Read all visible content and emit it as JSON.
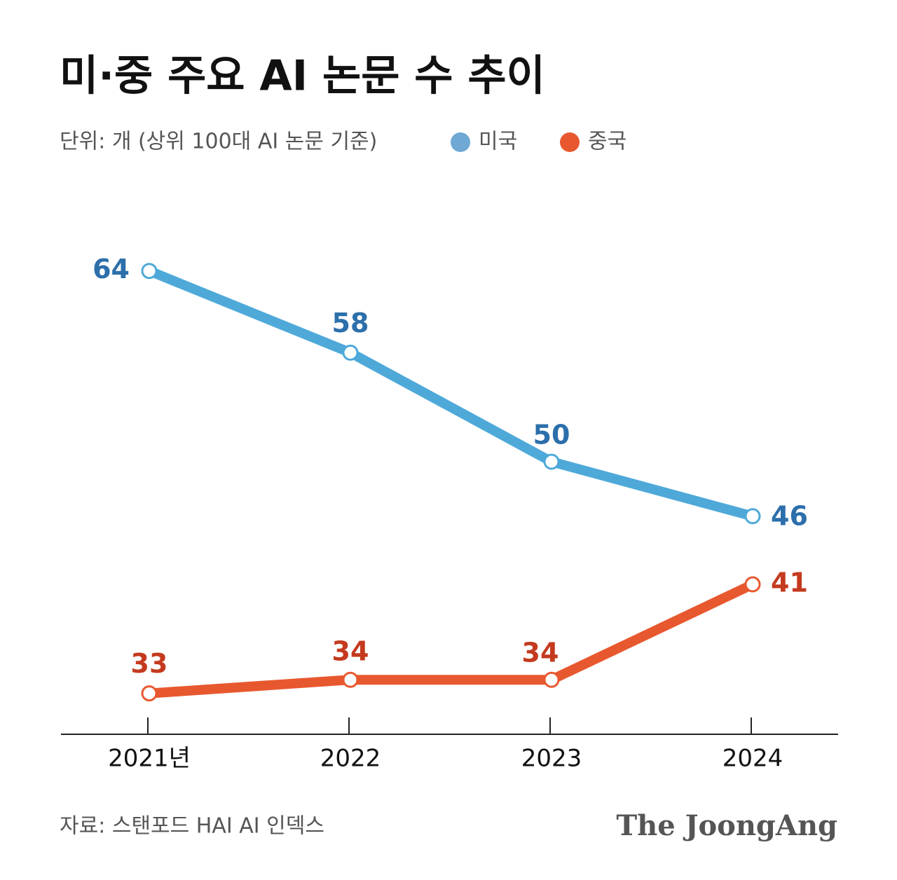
{
  "chart_data": {
    "type": "line",
    "title": "미·중 주요 AI 논문 수 추이",
    "subtitle": "단위: 개 (상위 100대 AI 논문 기준)",
    "source": "자료: 스탠포드 HAI AI 인덱스",
    "logo": "The JoongAng",
    "categories": [
      "2021년",
      "2022",
      "2023",
      "2024"
    ],
    "series": [
      {
        "name": "미국",
        "color": "#4ea9d9",
        "label_color": "#2c6fab",
        "legend_color": "#6ea8d3",
        "values": [
          64,
          58,
          50,
          46
        ]
      },
      {
        "name": "중국",
        "color": "#e8582f",
        "label_color": "#c43a1e",
        "legend_color": "#e8582f",
        "values": [
          33,
          34,
          34,
          41
        ]
      }
    ],
    "ylim": [
      30,
      70
    ]
  }
}
